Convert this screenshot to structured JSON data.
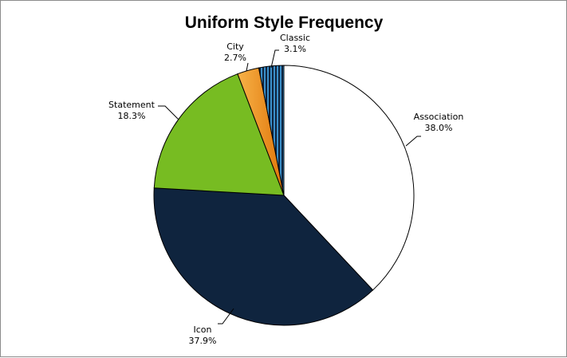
{
  "chart_data": {
    "type": "pie",
    "title": "Uniform Style Frequency",
    "categories": [
      "Association",
      "Icon",
      "Statement",
      "City",
      "Classic"
    ],
    "values": [
      38.0,
      37.9,
      18.3,
      2.7,
      3.1
    ],
    "value_labels": [
      "38.0%",
      "37.9%",
      "18.3%",
      "2.7%",
      "3.1%"
    ],
    "colors": [
      "#ffffff",
      "#0f243e",
      "#77bc22",
      "#f59a1b",
      "#1f5a86"
    ],
    "legend": "none"
  }
}
